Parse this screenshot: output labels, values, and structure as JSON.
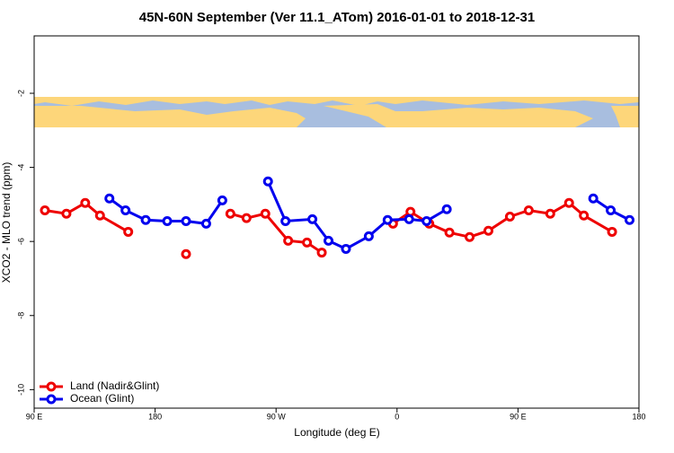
{
  "chart_data": {
    "type": "line",
    "title": "45N-60N September (Ver 11.1_ATom)   2016-01-01 to 2018-12-31",
    "xlabel": "Longitude (deg E)",
    "ylabel": "XCO2 - MLO trend (ppm)",
    "xlim": [
      90,
      540
    ],
    "ylim": [
      -10.5,
      -0.45
    ],
    "xticks": [
      {
        "value": 90,
        "label": "90 E"
      },
      {
        "value": 180,
        "label": "180"
      },
      {
        "value": 270,
        "label": "90 W"
      },
      {
        "value": 360,
        "label": "0"
      },
      {
        "value": 450,
        "label": "90 E"
      },
      {
        "value": 540,
        "label": "180"
      }
    ],
    "yticks": [
      -2,
      -4,
      -6,
      -8,
      -10
    ],
    "legend": "bottomleft",
    "series": [
      {
        "name": "Land (Nadir&Glint)",
        "color": "#ee0000",
        "x": [
          98,
          114,
          128,
          139,
          160,
          null,
          203,
          null,
          236,
          248,
          262,
          279,
          293,
          304,
          null,
          357,
          370,
          384,
          399,
          414,
          428,
          444,
          458,
          474,
          488,
          499,
          520
        ],
        "values": [
          -5.16,
          -5.25,
          -4.96,
          -5.3,
          -5.74,
          null,
          -6.34,
          null,
          -5.25,
          -5.37,
          -5.25,
          -5.98,
          -6.03,
          -6.3,
          null,
          -5.52,
          -5.2,
          -5.52,
          -5.76,
          -5.88,
          -5.71,
          -5.33,
          -5.16,
          -5.25,
          -4.96,
          -5.3,
          -5.74
        ]
      },
      {
        "name": "Ocean (Glint)",
        "color": "#0000ee",
        "x": [
          146,
          158,
          173,
          189,
          203,
          218,
          230,
          null,
          264,
          277,
          297,
          309,
          322,
          339,
          353,
          369,
          382,
          397,
          null,
          506,
          519,
          533
        ],
        "values": [
          -4.84,
          -5.16,
          -5.42,
          -5.45,
          -5.45,
          -5.52,
          -4.89,
          null,
          -4.38,
          -5.45,
          -5.4,
          -5.98,
          -6.2,
          -5.86,
          -5.42,
          -5.4,
          -5.45,
          -5.13,
          null,
          -4.84,
          -5.16,
          -5.42
        ]
      }
    ]
  }
}
